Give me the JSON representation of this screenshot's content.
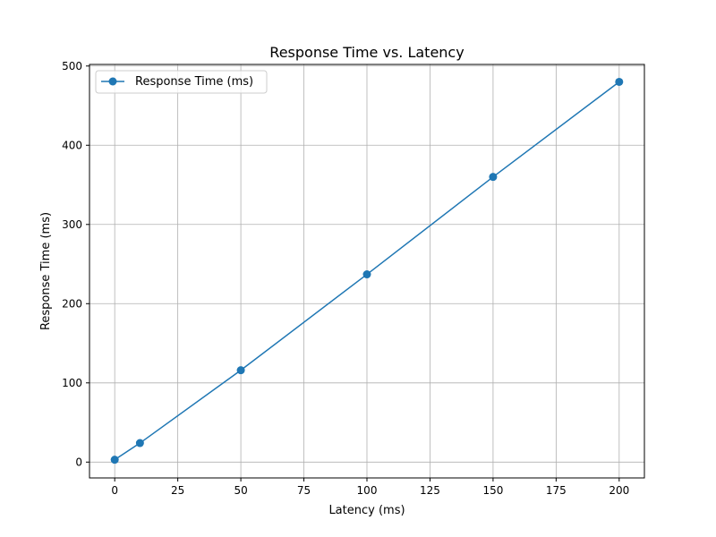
{
  "chart_data": {
    "type": "line",
    "title": "Response Time vs. Latency",
    "xlabel": "Latency (ms)",
    "ylabel": "Response Time (ms)",
    "x": [
      0,
      10,
      50,
      100,
      150,
      200
    ],
    "series": [
      {
        "name": "Response Time (ms)",
        "values": [
          3,
          24,
          116,
          237,
          360,
          480
        ],
        "color": "#1f77b4",
        "marker": "circle"
      }
    ],
    "xlim": [
      -10,
      210
    ],
    "ylim": [
      -20,
      502
    ],
    "xticks": [
      0,
      25,
      50,
      75,
      100,
      125,
      150,
      175,
      200
    ],
    "yticks": [
      0,
      100,
      200,
      300,
      400,
      500
    ],
    "grid": true,
    "legend_position": "top-left"
  }
}
